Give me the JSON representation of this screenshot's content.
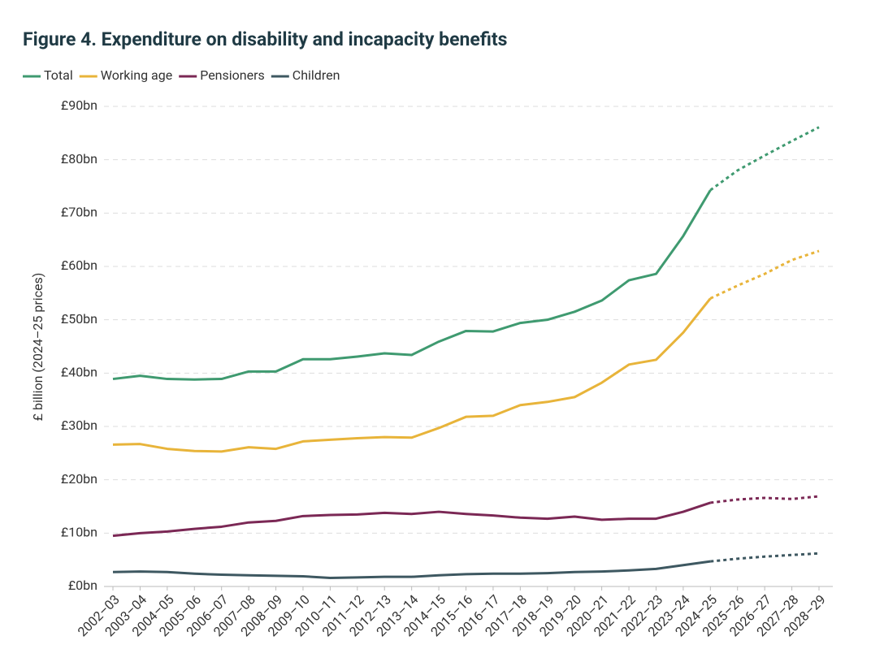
{
  "chart_data": {
    "type": "line",
    "title": "Figure 4. Expenditure on disability and incapacity benefits",
    "y_label": "£ billion (2024–25 prices)",
    "categories": [
      "2002–03",
      "2003–04",
      "2004–05",
      "2005–06",
      "2006–07",
      "2007–08",
      "2008–09",
      "2009–10",
      "2010–11",
      "2011–12",
      "2012–13",
      "2013–14",
      "2014–15",
      "2015–16",
      "2016–17",
      "2017–18",
      "2018–19",
      "2019–20",
      "2020–21",
      "2021–22",
      "2022–23",
      "2023–24",
      "2024–25",
      "2025–26",
      "2026–27",
      "2027–28",
      "2028–29"
    ],
    "projection_from": "2024–25",
    "series": [
      {
        "name": "Total",
        "color": "#3f9a70",
        "values": [
          38.9,
          39.5,
          38.9,
          38.8,
          38.9,
          40.3,
          40.3,
          42.6,
          42.6,
          43.1,
          43.7,
          43.4,
          45.9,
          47.9,
          47.8,
          49.4,
          50.0,
          51.5,
          53.6,
          57.4,
          58.6,
          65.7,
          74.3,
          78.0,
          80.8,
          83.5,
          86.1
        ]
      },
      {
        "name": "Working age",
        "color": "#e8b43a",
        "values": [
          26.6,
          26.7,
          25.8,
          25.4,
          25.3,
          26.1,
          25.8,
          27.2,
          27.5,
          27.8,
          28.0,
          27.9,
          29.7,
          31.8,
          32.0,
          34.0,
          34.6,
          35.5,
          38.2,
          41.6,
          42.5,
          47.6,
          54.0,
          56.4,
          58.6,
          61.2,
          62.9
        ]
      },
      {
        "name": "Pensioners",
        "color": "#7b2855",
        "values": [
          9.5,
          10.0,
          10.3,
          10.8,
          11.2,
          12.0,
          12.3,
          13.2,
          13.4,
          13.5,
          13.8,
          13.6,
          14.0,
          13.6,
          13.3,
          12.9,
          12.7,
          13.1,
          12.5,
          12.7,
          12.7,
          14.0,
          15.7,
          16.3,
          16.6,
          16.4,
          16.9
        ]
      },
      {
        "name": "Children",
        "color": "#3e5861",
        "values": [
          2.7,
          2.8,
          2.7,
          2.4,
          2.2,
          2.1,
          2.0,
          1.9,
          1.6,
          1.7,
          1.8,
          1.8,
          2.1,
          2.3,
          2.4,
          2.4,
          2.5,
          2.7,
          2.8,
          3.0,
          3.3,
          4.0,
          4.7,
          5.2,
          5.6,
          5.9,
          6.2
        ]
      }
    ],
    "ylim": [
      0,
      90
    ],
    "yticks": [
      {
        "value": 0,
        "label": "£0bn"
      },
      {
        "value": 10,
        "label": "£10bn"
      },
      {
        "value": 20,
        "label": "£20bn"
      },
      {
        "value": 30,
        "label": "£30bn"
      },
      {
        "value": 40,
        "label": "£40bn"
      },
      {
        "value": 50,
        "label": "£50bn"
      },
      {
        "value": 60,
        "label": "£60bn"
      },
      {
        "value": 70,
        "label": "£70bn"
      },
      {
        "value": 80,
        "label": "£80bn"
      },
      {
        "value": 90,
        "label": "£90bn"
      }
    ],
    "grid": true,
    "legend": "top-left"
  }
}
